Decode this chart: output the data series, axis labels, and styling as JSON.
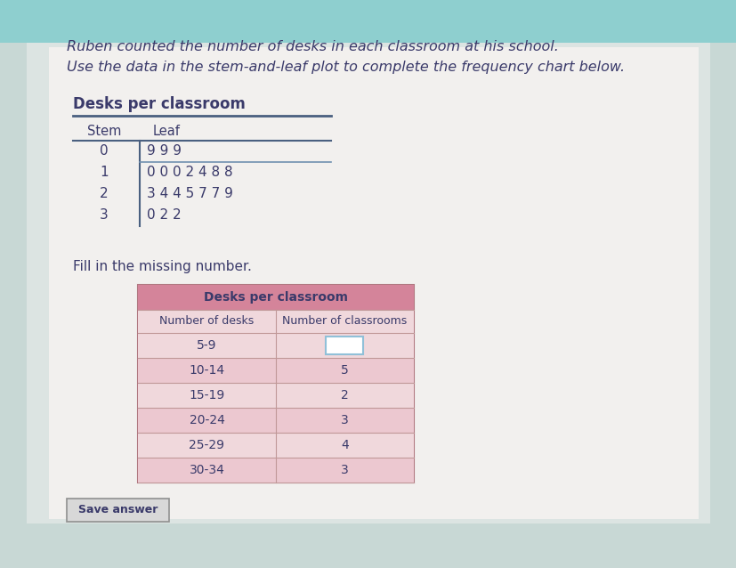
{
  "bg_top_color": "#8ecfcf",
  "bg_bottom_color": "#c8d8d5",
  "page_bg": "#e8e8e8",
  "title_line1": "Ruben counted the number of desks in each classroom at his school.",
  "title_line2": "Use the data in the stem-and-leaf plot to complete the frequency chart below.",
  "stem_title": "Desks per classroom",
  "stem_header": [
    "Stem",
    "Leaf"
  ],
  "stem_data": [
    [
      "0",
      "9 9 9"
    ],
    [
      "1",
      "0 0 0 2 4 8 8"
    ],
    [
      "2",
      "3 4 4 5 7 7 9"
    ],
    [
      "3",
      "0 2 2"
    ]
  ],
  "fill_label": "Fill in the missing number.",
  "freq_title": "Desks per classroom",
  "freq_col1": "Number of desks",
  "freq_col2": "Number of classrooms",
  "freq_rows": [
    [
      "5-9",
      ""
    ],
    [
      "10-14",
      "5"
    ],
    [
      "15-19",
      "2"
    ],
    [
      "20-24",
      "3"
    ],
    [
      "25-29",
      "4"
    ],
    [
      "30-34",
      "3"
    ]
  ],
  "missing_row": 0,
  "save_label": "Save answer",
  "header_pink": "#d4849a",
  "freq_bg_light": "#ecc8d0",
  "freq_bg_lighter": "#f0d8dc",
  "freq_line_color": "#c09898",
  "text_dark": "#3a3a6a",
  "stem_line_color": "#4a6080",
  "input_border": "#90c0d8"
}
